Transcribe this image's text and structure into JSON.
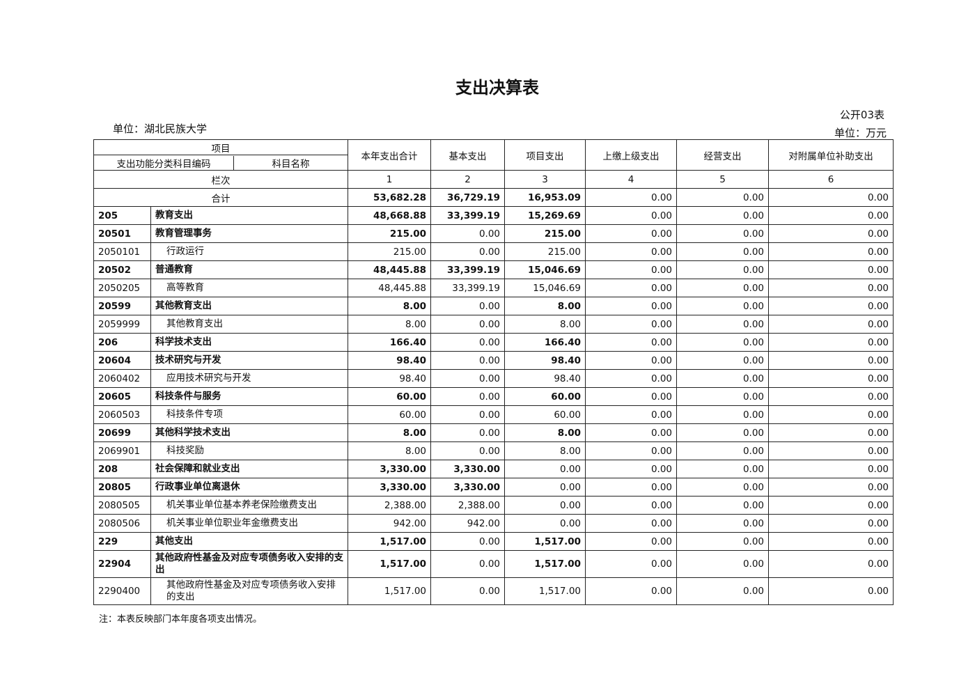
{
  "title": "支出决算表",
  "unit_label": "单位：湖北民族大学",
  "table_code": "公开03表",
  "money_unit": "单位：万元",
  "header": {
    "item": "项目",
    "code_col": "支出功能分类科目编码",
    "name_col": "科目名称",
    "cols": [
      "本年支出合计",
      "基本支出",
      "项目支出",
      "上缴上级支出",
      "经营支出",
      "对附属单位补助支出"
    ],
    "seq_label": "栏次",
    "seq": [
      "1",
      "2",
      "3",
      "4",
      "5",
      "6"
    ]
  },
  "total": {
    "label": "合计",
    "values": [
      "53,682.28",
      "36,729.19",
      "16,953.09",
      "0.00",
      "0.00",
      "0.00"
    ]
  },
  "rows": [
    {
      "code": "205",
      "name": "教育支出",
      "bold": true,
      "values": [
        "48,668.88",
        "33,399.19",
        "15,269.69",
        "0.00",
        "0.00",
        "0.00"
      ]
    },
    {
      "code": "20501",
      "name": "教育管理事务",
      "bold": true,
      "values": [
        "215.00",
        "0.00",
        "215.00",
        "0.00",
        "0.00",
        "0.00"
      ]
    },
    {
      "code": "2050101",
      "name": "行政运行",
      "bold": false,
      "values": [
        "215.00",
        "0.00",
        "215.00",
        "0.00",
        "0.00",
        "0.00"
      ]
    },
    {
      "code": "20502",
      "name": "普通教育",
      "bold": true,
      "values": [
        "48,445.88",
        "33,399.19",
        "15,046.69",
        "0.00",
        "0.00",
        "0.00"
      ]
    },
    {
      "code": "2050205",
      "name": "高等教育",
      "bold": false,
      "values": [
        "48,445.88",
        "33,399.19",
        "15,046.69",
        "0.00",
        "0.00",
        "0.00"
      ]
    },
    {
      "code": "20599",
      "name": "其他教育支出",
      "bold": true,
      "values": [
        "8.00",
        "0.00",
        "8.00",
        "0.00",
        "0.00",
        "0.00"
      ]
    },
    {
      "code": "2059999",
      "name": "其他教育支出",
      "bold": false,
      "values": [
        "8.00",
        "0.00",
        "8.00",
        "0.00",
        "0.00",
        "0.00"
      ]
    },
    {
      "code": "206",
      "name": "科学技术支出",
      "bold": true,
      "values": [
        "166.40",
        "0.00",
        "166.40",
        "0.00",
        "0.00",
        "0.00"
      ]
    },
    {
      "code": "20604",
      "name": "技术研究与开发",
      "bold": true,
      "values": [
        "98.40",
        "0.00",
        "98.40",
        "0.00",
        "0.00",
        "0.00"
      ]
    },
    {
      "code": "2060402",
      "name": "应用技术研究与开发",
      "bold": false,
      "values": [
        "98.40",
        "0.00",
        "98.40",
        "0.00",
        "0.00",
        "0.00"
      ]
    },
    {
      "code": "20605",
      "name": "科技条件与服务",
      "bold": true,
      "values": [
        "60.00",
        "0.00",
        "60.00",
        "0.00",
        "0.00",
        "0.00"
      ]
    },
    {
      "code": "2060503",
      "name": "科技条件专项",
      "bold": false,
      "values": [
        "60.00",
        "0.00",
        "60.00",
        "0.00",
        "0.00",
        "0.00"
      ]
    },
    {
      "code": "20699",
      "name": "其他科学技术支出",
      "bold": true,
      "values": [
        "8.00",
        "0.00",
        "8.00",
        "0.00",
        "0.00",
        "0.00"
      ]
    },
    {
      "code": "2069901",
      "name": "科技奖励",
      "bold": false,
      "values": [
        "8.00",
        "0.00",
        "8.00",
        "0.00",
        "0.00",
        "0.00"
      ]
    },
    {
      "code": "208",
      "name": "社会保障和就业支出",
      "bold": true,
      "values": [
        "3,330.00",
        "3,330.00",
        "0.00",
        "0.00",
        "0.00",
        "0.00"
      ]
    },
    {
      "code": "20805",
      "name": "行政事业单位离退休",
      "bold": true,
      "values": [
        "3,330.00",
        "3,330.00",
        "0.00",
        "0.00",
        "0.00",
        "0.00"
      ]
    },
    {
      "code": "2080505",
      "name": "机关事业单位基本养老保险缴费支出",
      "bold": false,
      "values": [
        "2,388.00",
        "2,388.00",
        "0.00",
        "0.00",
        "0.00",
        "0.00"
      ]
    },
    {
      "code": "2080506",
      "name": "机关事业单位职业年金缴费支出",
      "bold": false,
      "values": [
        "942.00",
        "942.00",
        "0.00",
        "0.00",
        "0.00",
        "0.00"
      ]
    },
    {
      "code": "229",
      "name": "其他支出",
      "bold": true,
      "values": [
        "1,517.00",
        "0.00",
        "1,517.00",
        "0.00",
        "0.00",
        "0.00"
      ]
    },
    {
      "code": "22904",
      "name": "其他政府性基金及对应专项债务收入安排的支出",
      "bold": true,
      "tall": true,
      "values": [
        "1,517.00",
        "0.00",
        "1,517.00",
        "0.00",
        "0.00",
        "0.00"
      ]
    },
    {
      "code": "2290400",
      "name": "其他政府性基金及对应专项债务收入安排的支出",
      "bold": false,
      "tall": true,
      "values": [
        "1,517.00",
        "0.00",
        "1,517.00",
        "0.00",
        "0.00",
        "0.00"
      ]
    }
  ],
  "note": "注：本表反映部门本年度各项支出情况。"
}
